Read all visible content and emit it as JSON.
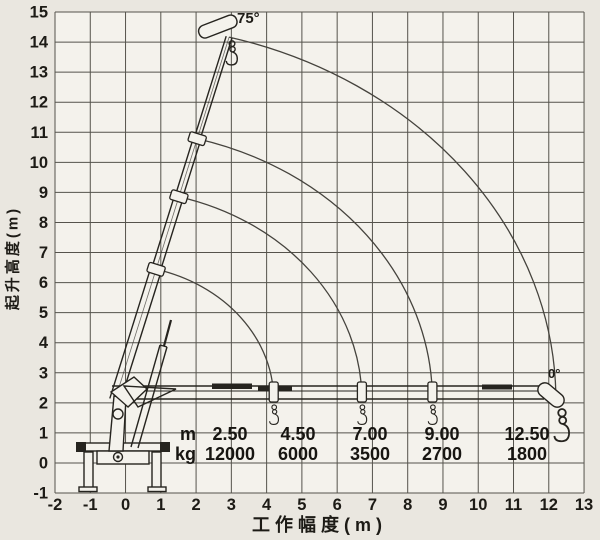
{
  "axes": {
    "x_label": "工作幅度(m)",
    "y_label": "起升高度(m)",
    "x_ticks": [
      -2,
      -1,
      0,
      1,
      2,
      3,
      4,
      5,
      6,
      7,
      8,
      9,
      10,
      11,
      12,
      13
    ],
    "y_ticks": [
      15,
      14,
      13,
      12,
      11,
      10,
      9,
      8,
      7,
      6,
      5,
      4,
      3,
      2,
      1,
      0,
      -1
    ]
  },
  "annotations": {
    "max_boom_angle": "75°",
    "min_boom_angle": "0°"
  },
  "load_table": {
    "unit_row_labels": [
      "m",
      "kg"
    ],
    "radii": [
      "2.50",
      "4.50",
      "7.00",
      "9.00",
      "12.50"
    ],
    "capacities": [
      "12000",
      "6000",
      "3500",
      "2700",
      "1800"
    ]
  },
  "colors": {
    "paper": "#f4f2ec",
    "margin": "#eae7e0",
    "grid": "#55534c",
    "ink": "#26241f"
  },
  "chart_data": {
    "type": "line",
    "title": "",
    "xlabel": "工作幅度(m)",
    "ylabel": "起升高度(m)",
    "xlim": [
      -2,
      13
    ],
    "ylim": [
      -1,
      15
    ],
    "grid": true,
    "legend": false,
    "boom_angles_deg": [
      75,
      0
    ],
    "envelope_arc_radii_m": [
      4.5,
      7.0,
      9.0,
      12.5
    ],
    "load_points": [
      {
        "radius_m": 2.5,
        "capacity_kg": 12000
      },
      {
        "radius_m": 4.5,
        "capacity_kg": 6000
      },
      {
        "radius_m": 7.0,
        "capacity_kg": 3500
      },
      {
        "radius_m": 9.0,
        "capacity_kg": 2700
      },
      {
        "radius_m": 12.5,
        "capacity_kg": 1800
      }
    ]
  }
}
